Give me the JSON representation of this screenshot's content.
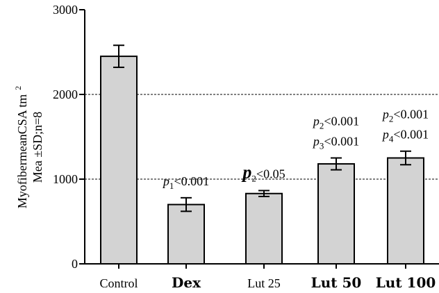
{
  "chart_data": {
    "type": "bar",
    "categories": [
      "Control",
      "Dex",
      "Lut 25",
      "Lut 50",
      "Lut 100"
    ],
    "values": [
      2450,
      700,
      830,
      1180,
      1250
    ],
    "errors": [
      130,
      80,
      35,
      70,
      80
    ],
    "ylim": [
      0,
      3000
    ],
    "yticks": [
      "0",
      "1000",
      "2000",
      "3000"
    ],
    "ylabel_line1": "MyofibermeanCSA tm",
    "ylabel_sup": "2",
    "ylabel_line2": "Mea ±SD;n=8",
    "reference_lines": [
      1000,
      2000
    ],
    "bar_color": "#d3d3d3",
    "annotations": [
      {
        "category": "Dex",
        "lines": [
          {
            "p": "p",
            "sub": "1",
            "rest": "<0.001"
          }
        ]
      },
      {
        "category": "Lut 25",
        "lines": [
          {
            "p": "p",
            "sub": "2",
            "rest": "<0.05"
          }
        ]
      },
      {
        "category": "Lut 50",
        "lines": [
          {
            "p": "p",
            "sub": "2",
            "rest": "<0.001"
          },
          {
            "p": "p",
            "sub": "3",
            "rest": "<0.001"
          }
        ]
      },
      {
        "category": "Lut 100",
        "lines": [
          {
            "p": "p",
            "sub": "2",
            "rest": "<0.001"
          },
          {
            "p": "p",
            "sub": "4",
            "rest": "<0.001"
          }
        ]
      }
    ]
  }
}
